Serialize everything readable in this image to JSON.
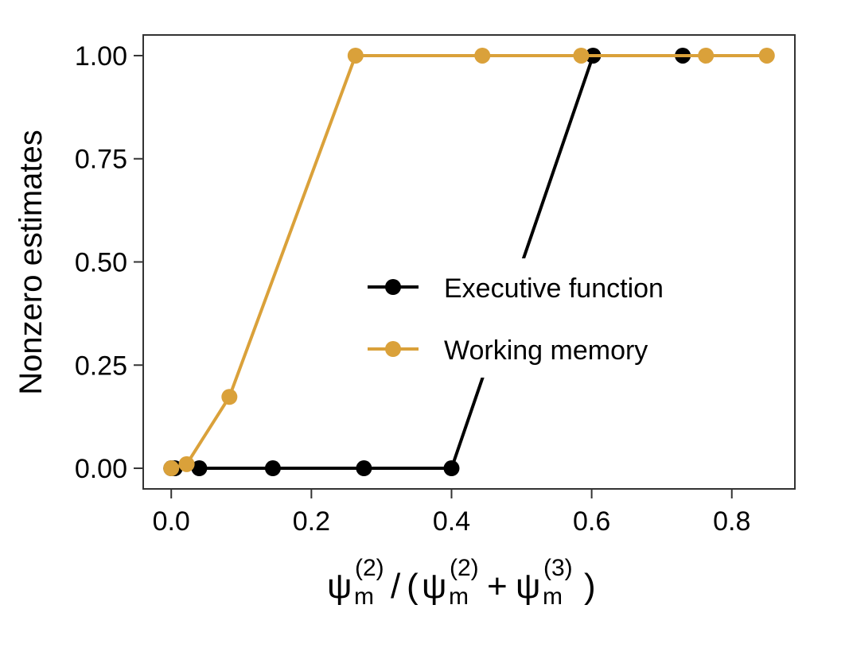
{
  "chart_data": {
    "type": "line",
    "ylabel": "Nonzero estimates",
    "xlabel": {
      "psi": "ψ",
      "sub": "m",
      "sup2": "(2)",
      "sup3": "(3)",
      "slash": "/",
      "open": "(",
      "plus": "+",
      "close": ")"
    },
    "xlim": [
      -0.04,
      0.89
    ],
    "ylim": [
      -0.05,
      1.05
    ],
    "x_ticks": [
      0.0,
      0.2,
      0.4,
      0.6,
      0.8
    ],
    "x_tick_labels": [
      "0.0",
      "0.2",
      "0.4",
      "0.6",
      "0.8"
    ],
    "y_ticks": [
      0.0,
      0.25,
      0.5,
      0.75,
      1.0
    ],
    "y_tick_labels": [
      "0.00",
      "0.25",
      "0.50",
      "0.75",
      "1.00"
    ],
    "grid": false,
    "legend_position": "center-right",
    "series": [
      {
        "name": "Executive function",
        "color": "#000000",
        "x": [
          0.0,
          0.005,
          0.04,
          0.145,
          0.275,
          0.4,
          0.602,
          0.73
        ],
        "y": [
          0.0,
          0.0,
          0.0,
          0.0,
          0.0,
          0.0,
          1.0,
          1.0
        ]
      },
      {
        "name": "Working memory",
        "color": "#DAA13A",
        "x": [
          0.0,
          0.022,
          0.083,
          0.263,
          0.444,
          0.585,
          0.763,
          0.85
        ],
        "y": [
          0.0,
          0.01,
          0.173,
          1.0,
          1.0,
          1.0,
          1.0,
          1.0
        ]
      }
    ]
  }
}
